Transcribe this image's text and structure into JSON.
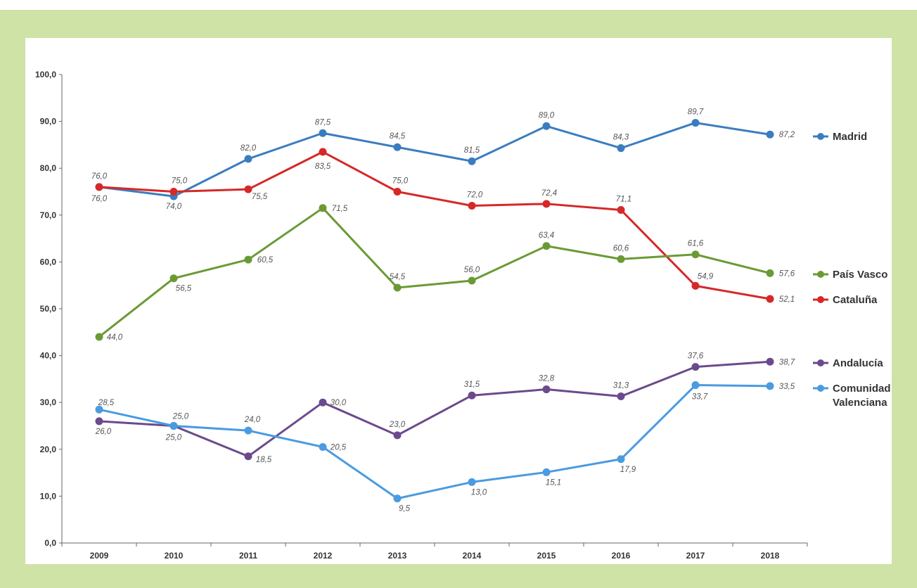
{
  "chart_data": {
    "type": "line",
    "x": [
      "2009",
      "2010",
      "2011",
      "2012",
      "2013",
      "2014",
      "2015",
      "2016",
      "2017",
      "2018"
    ],
    "ylim": [
      0,
      100
    ],
    "yticks": [
      "0,0",
      "10,0",
      "20,0",
      "30,0",
      "40,0",
      "50,0",
      "60,0",
      "70,0",
      "80,0",
      "90,0",
      "100,0"
    ],
    "grid": false,
    "legend_placement": "right",
    "series": [
      {
        "name": "Madrid",
        "color": "#3a7dbf",
        "values": [
          76.0,
          74.0,
          82.0,
          87.5,
          84.5,
          81.5,
          89.0,
          84.3,
          89.7,
          87.2
        ],
        "labels": [
          "76,0",
          "74,0",
          "82,0",
          "87,5",
          "84,5",
          "81,5",
          "89,0",
          "84,3",
          "89,7",
          "87,2"
        ]
      },
      {
        "name": "Cataluña",
        "color": "#d62828",
        "values": [
          76.0,
          75.0,
          75.5,
          83.5,
          75.0,
          72.0,
          72.4,
          71.1,
          54.9,
          52.1
        ],
        "labels": [
          "76,0",
          "75,0",
          "75,5",
          "83,5",
          "75,0",
          "72,0",
          "72,4",
          "71,1",
          "54,9",
          "52,1"
        ]
      },
      {
        "name": "País Vasco",
        "color": "#6b9a35",
        "values": [
          44.0,
          56.5,
          60.5,
          71.5,
          54.5,
          56.0,
          63.4,
          60.6,
          61.6,
          57.6
        ],
        "labels": [
          "44,0",
          "56,5",
          "60,5",
          "71,5",
          "54,5",
          "56,0",
          "63,4",
          "60,6",
          "61,6",
          "57,6"
        ]
      },
      {
        "name": "Andalucía",
        "color": "#6b4a8c",
        "values": [
          26.0,
          25.0,
          18.5,
          30.0,
          23.0,
          31.5,
          32.8,
          31.3,
          37.6,
          38.7
        ],
        "labels": [
          "26,0",
          "25,0",
          "18,5",
          "30,0",
          "23,0",
          "31,5",
          "32,8",
          "31,3",
          "37,6",
          "38,7"
        ]
      },
      {
        "name": "Comunidad Valenciana",
        "color": "#4a9be0",
        "values": [
          28.5,
          25.0,
          24.0,
          20.5,
          9.5,
          13.0,
          15.1,
          17.9,
          33.7,
          33.5
        ],
        "labels": [
          "28,5",
          "25,0",
          "24,0",
          "20,5",
          "9,5",
          "13,0",
          "15,1",
          "17,9",
          "33,7",
          "33,5"
        ]
      }
    ],
    "legend": [
      {
        "text": "Madrid",
        "lines": [
          "Madrid"
        ]
      },
      {
        "text": "País Vasco",
        "lines": [
          "País Vasco"
        ]
      },
      {
        "text": "Cataluña",
        "lines": [
          "Cataluña"
        ]
      },
      {
        "text": "Andalucía",
        "lines": [
          "Andalucía"
        ]
      },
      {
        "text": "Comunidad Valenciana",
        "lines": [
          "Comunidad",
          "Valenciana"
        ]
      }
    ]
  }
}
